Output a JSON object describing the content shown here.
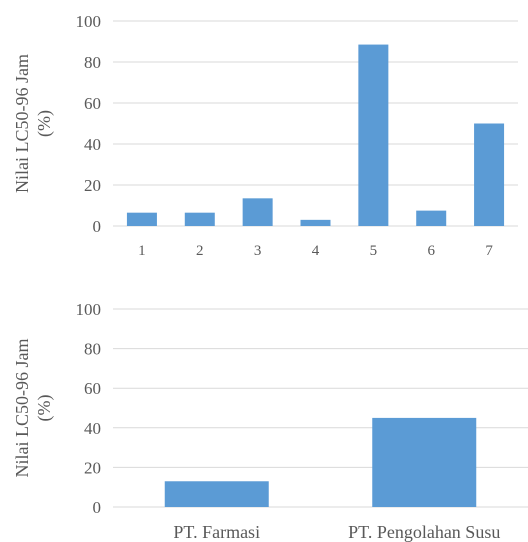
{
  "chart_data": [
    {
      "type": "bar",
      "title": "",
      "xlabel": "",
      "ylabel": [
        "Nilai LC50-96 Jam",
        "(%)"
      ],
      "ylim": [
        0,
        100
      ],
      "yticks": [
        0,
        20,
        40,
        60,
        80,
        100
      ],
      "grid": true,
      "color": "#5b9bd5",
      "categories": [
        "1",
        "2",
        "3",
        "4",
        "5",
        "6",
        "7"
      ],
      "values": [
        6.5,
        6.5,
        13.5,
        3,
        88.5,
        7.5,
        50
      ]
    },
    {
      "type": "bar",
      "title": "",
      "xlabel": "",
      "ylabel": [
        "Nilai LC50-96 Jam",
        "(%)"
      ],
      "ylim": [
        0,
        100
      ],
      "yticks": [
        0,
        20,
        40,
        60,
        80,
        100
      ],
      "grid": true,
      "color": "#5b9bd5",
      "categories": [
        "PT. Farmasi",
        "PT. Pengolahan Susu"
      ],
      "values": [
        13,
        45
      ]
    }
  ]
}
